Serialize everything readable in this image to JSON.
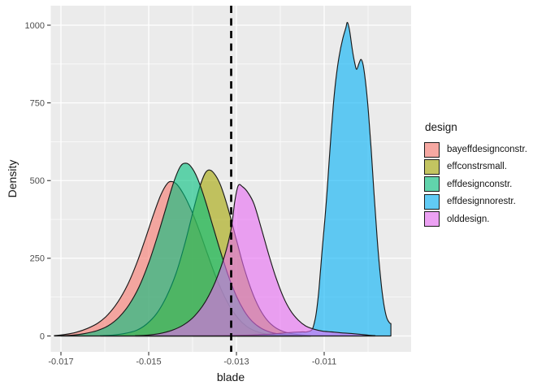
{
  "figure": {
    "background": "#FFFFFF",
    "panel_background": "#EBEBEB",
    "grid_color": "#FFFFFF",
    "tick_mark_color": "#333333",
    "tick_label_color": "#4D4D4D"
  },
  "axes": {
    "x": {
      "title": "blade",
      "tick_labels": [
        "-0.017",
        "-0.015",
        "-0.013",
        "-0.011"
      ],
      "tick_values": [
        -0.017,
        -0.015,
        -0.013,
        -0.011
      ]
    },
    "y": {
      "title": "Density",
      "tick_labels": [
        "0",
        "250",
        "500",
        "750",
        "1000"
      ],
      "tick_values": [
        0,
        250,
        500,
        750,
        1000
      ]
    }
  },
  "legend": {
    "title": "design",
    "items": [
      {
        "label": "bayeffdesignconstr.",
        "color": "#F8766D"
      },
      {
        "label": "effconstrsmall.",
        "color": "#A3A500"
      },
      {
        "label": "effdesignconstr.",
        "color": "#00BF7D"
      },
      {
        "label": "effdesignnorestr.",
        "color": "#00B0F6"
      },
      {
        "label": "olddesign.",
        "color": "#E76BF3"
      }
    ]
  },
  "chart_data": {
    "type": "area",
    "subtype": "density",
    "title": "",
    "xlabel": "blade",
    "ylabel": "Density",
    "x_ticks": [
      -0.017,
      -0.015,
      -0.013,
      -0.011
    ],
    "y_ticks": [
      0,
      250,
      500,
      750,
      1000
    ],
    "x_range": [
      -0.01724,
      -0.00897
    ],
    "y_range": [
      0,
      1040
    ],
    "grid": "on",
    "legend_position": "right",
    "fill_alpha": 0.6,
    "outline_color": "#1A1A1A",
    "vline": {
      "x": -0.01312,
      "style": "dashed",
      "color": "#000000"
    },
    "series": [
      {
        "name": "bayeffdesignconstr.",
        "color": "#F8766D",
        "points": [
          [
            -0.01715,
            1
          ],
          [
            -0.0169,
            5
          ],
          [
            -0.01665,
            12
          ],
          [
            -0.0164,
            24
          ],
          [
            -0.01615,
            42
          ],
          [
            -0.01592,
            70
          ],
          [
            -0.0157,
            110
          ],
          [
            -0.01548,
            165
          ],
          [
            -0.01527,
            235
          ],
          [
            -0.01507,
            315
          ],
          [
            -0.01488,
            395
          ],
          [
            -0.01472,
            455
          ],
          [
            -0.01458,
            490
          ],
          [
            -0.01448,
            497
          ],
          [
            -0.01436,
            488
          ],
          [
            -0.0142,
            455
          ],
          [
            -0.01403,
            405
          ],
          [
            -0.01385,
            340
          ],
          [
            -0.01367,
            268
          ],
          [
            -0.01349,
            198
          ],
          [
            -0.01331,
            138
          ],
          [
            -0.01313,
            90
          ],
          [
            -0.01295,
            55
          ],
          [
            -0.01277,
            31
          ],
          [
            -0.01259,
            17
          ],
          [
            -0.01238,
            8
          ],
          [
            -0.01214,
            3
          ],
          [
            -0.01185,
            1
          ],
          [
            -0.0115,
            0
          ]
        ]
      },
      {
        "name": "effconstrsmall.",
        "color": "#A3A500",
        "points": [
          [
            -0.0161,
            1
          ],
          [
            -0.01582,
            3
          ],
          [
            -0.01555,
            8
          ],
          [
            -0.01528,
            18
          ],
          [
            -0.01505,
            38
          ],
          [
            -0.01482,
            72
          ],
          [
            -0.0146,
            125
          ],
          [
            -0.01438,
            200
          ],
          [
            -0.01418,
            295
          ],
          [
            -0.01399,
            400
          ],
          [
            -0.01384,
            478
          ],
          [
            -0.01372,
            522
          ],
          [
            -0.01363,
            534
          ],
          [
            -0.01352,
            525
          ],
          [
            -0.01337,
            488
          ],
          [
            -0.0132,
            415
          ],
          [
            -0.01302,
            320
          ],
          [
            -0.01284,
            226
          ],
          [
            -0.01266,
            148
          ],
          [
            -0.01248,
            90
          ],
          [
            -0.0123,
            51
          ],
          [
            -0.0121,
            26
          ],
          [
            -0.01188,
            12
          ],
          [
            -0.01162,
            5
          ],
          [
            -0.01132,
            1
          ]
        ]
      },
      {
        "name": "effdesignconstr.",
        "color": "#00BF7D",
        "points": [
          [
            -0.017,
            1
          ],
          [
            -0.01672,
            3
          ],
          [
            -0.01645,
            8
          ],
          [
            -0.01618,
            17
          ],
          [
            -0.01592,
            33
          ],
          [
            -0.01568,
            60
          ],
          [
            -0.01545,
            100
          ],
          [
            -0.01522,
            158
          ],
          [
            -0.015,
            235
          ],
          [
            -0.01479,
            325
          ],
          [
            -0.0146,
            415
          ],
          [
            -0.01443,
            495
          ],
          [
            -0.01428,
            545
          ],
          [
            -0.01416,
            556
          ],
          [
            -0.01404,
            546
          ],
          [
            -0.01389,
            508
          ],
          [
            -0.01372,
            440
          ],
          [
            -0.01354,
            355
          ],
          [
            -0.01336,
            270
          ],
          [
            -0.01318,
            192
          ],
          [
            -0.013,
            128
          ],
          [
            -0.01282,
            80
          ],
          [
            -0.01264,
            47
          ],
          [
            -0.01244,
            25
          ],
          [
            -0.01222,
            12
          ],
          [
            -0.01196,
            5
          ],
          [
            -0.01166,
            2
          ],
          [
            -0.0113,
            0
          ]
        ]
      },
      {
        "name": "effdesignnorestr.",
        "color": "#00B0F6",
        "points": [
          [
            -0.014,
            0
          ],
          [
            -0.0133,
            1
          ],
          [
            -0.0127,
            3
          ],
          [
            -0.0122,
            6
          ],
          [
            -0.0118,
            11
          ],
          [
            -0.0115,
            13
          ],
          [
            -0.0114,
            13
          ],
          [
            -0.01128,
            20
          ],
          [
            -0.01122,
            45
          ],
          [
            -0.01118,
            75
          ],
          [
            -0.01113,
            135
          ],
          [
            -0.01109,
            200
          ],
          [
            -0.01105,
            270
          ],
          [
            -0.011,
            350
          ],
          [
            -0.01095,
            435
          ],
          [
            -0.01089,
            555
          ],
          [
            -0.01084,
            655
          ],
          [
            -0.01079,
            745
          ],
          [
            -0.01073,
            830
          ],
          [
            -0.01066,
            900
          ],
          [
            -0.01058,
            955
          ],
          [
            -0.01051,
            990
          ],
          [
            -0.01047,
            1009
          ],
          [
            -0.01042,
            982
          ],
          [
            -0.01036,
            922
          ],
          [
            -0.0103,
            876
          ],
          [
            -0.01026,
            858
          ],
          [
            -0.01021,
            876
          ],
          [
            -0.01016,
            890
          ],
          [
            -0.01011,
            870
          ],
          [
            -0.01005,
            808
          ],
          [
            -0.00999,
            718
          ],
          [
            -0.00993,
            602
          ],
          [
            -0.00987,
            472
          ],
          [
            -0.00981,
            348
          ],
          [
            -0.00975,
            240
          ],
          [
            -0.00969,
            155
          ],
          [
            -0.00963,
            93
          ],
          [
            -0.00957,
            57
          ],
          [
            -0.00951,
            42
          ],
          [
            -0.00948,
            40
          ]
        ],
        "right_closed": true
      },
      {
        "name": "olddesign.",
        "color": "#E76BF3",
        "points": [
          [
            -0.0153,
            1
          ],
          [
            -0.01502,
            3
          ],
          [
            -0.01474,
            8
          ],
          [
            -0.01447,
            18
          ],
          [
            -0.0142,
            36
          ],
          [
            -0.01395,
            65
          ],
          [
            -0.01371,
            110
          ],
          [
            -0.01348,
            175
          ],
          [
            -0.01327,
            258
          ],
          [
            -0.01312,
            345
          ],
          [
            -0.01304,
            430
          ],
          [
            -0.01296,
            484
          ],
          [
            -0.01286,
            480
          ],
          [
            -0.01274,
            462
          ],
          [
            -0.0126,
            425
          ],
          [
            -0.01244,
            350
          ],
          [
            -0.01227,
            265
          ],
          [
            -0.0121,
            188
          ],
          [
            -0.01193,
            125
          ],
          [
            -0.01176,
            80
          ],
          [
            -0.01159,
            51
          ],
          [
            -0.01142,
            32
          ],
          [
            -0.01124,
            22
          ],
          [
            -0.01105,
            16
          ],
          [
            -0.01083,
            13
          ],
          [
            -0.0106,
            10
          ],
          [
            -0.01038,
            8
          ],
          [
            -0.01016,
            5
          ],
          [
            -0.00996,
            2
          ],
          [
            -0.00984,
            1
          ]
        ]
      }
    ]
  }
}
